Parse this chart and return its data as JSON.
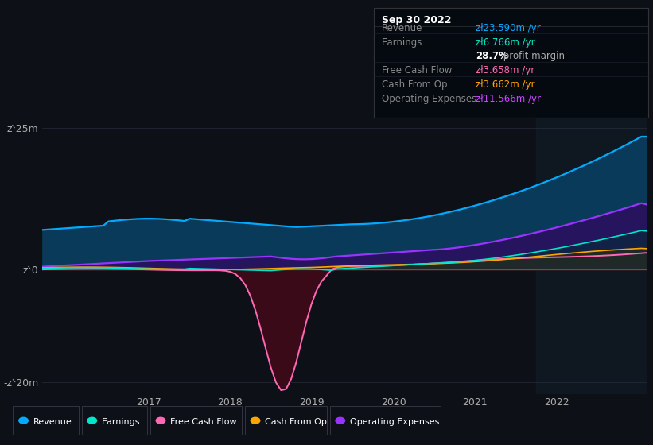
{
  "bg_color": "#0d1117",
  "plot_bg_color": "#0d1117",
  "title": "Sep 30 2022",
  "ylim": [
    -22,
    28
  ],
  "yticks": [
    -20,
    0,
    25
  ],
  "ytick_labels": [
    "-zᐠ20m",
    "zᐠ0",
    "zᐠ25m"
  ],
  "xlim_start": 2015.7,
  "xlim_end": 2023.1,
  "xticks": [
    2017,
    2018,
    2019,
    2020,
    2021,
    2022
  ],
  "grid_color": "#2a3040",
  "highlight_start": 2021.75,
  "colors": {
    "revenue": "#00aaff",
    "earnings": "#00e5cc",
    "free_cash_flow": "#ff69b4",
    "cash_from_op": "#ffa500",
    "op_expenses": "#9933ff"
  },
  "fill_colors": {
    "revenue": "#0a3a5a",
    "op_expenses": "#2a1060",
    "free_cash_flow_neg": "#3a0a18",
    "cash_from_op": "#4a2800",
    "earnings": "#003030"
  },
  "t_start": 2015.7,
  "t_end": 2023.1,
  "info_box_bg": "#050a10",
  "info_box_border": "#333333",
  "legend_border": "#333344"
}
